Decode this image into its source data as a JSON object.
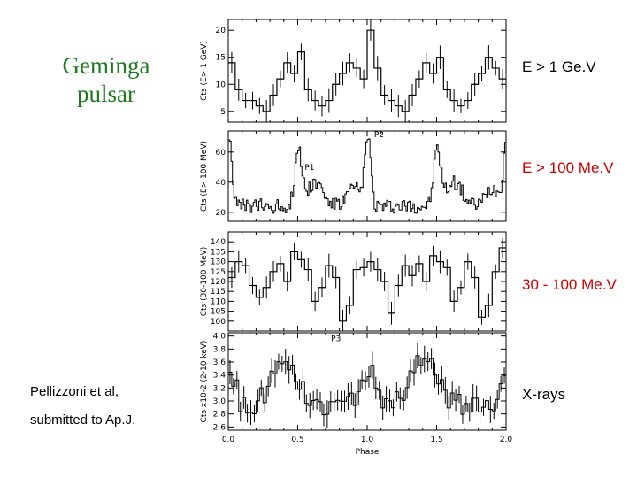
{
  "heading": {
    "line1": "Geminga",
    "line2": "pulsar",
    "color": "#1f7a1f"
  },
  "band_labels": [
    {
      "text": "E > 1 Ge.V",
      "color": "#000000"
    },
    {
      "text": "E > 100 Me.V",
      "color": "#cc0000"
    },
    {
      "text": "30 - 100 Me.V",
      "color": "#cc0000"
    },
    {
      "text": "X-rays",
      "color": "#000000"
    }
  ],
  "credit": {
    "line1": "Pellizzoni et al,",
    "line2": "submitted to Ap.J."
  },
  "chart_data": [
    {
      "type": "line",
      "panel": "E > 1 GeV",
      "ylabel": "Cts (E> 1 GeV)",
      "yticks": [
        5,
        10,
        15,
        20
      ],
      "ylim": [
        3,
        22
      ],
      "x": [
        0.0,
        0.05,
        0.1,
        0.15,
        0.2,
        0.25,
        0.3,
        0.35,
        0.4,
        0.45,
        0.5,
        0.55,
        0.6,
        0.65,
        0.7,
        0.75,
        0.8,
        0.85,
        0.9,
        0.95,
        1.0,
        1.05,
        1.1,
        1.15,
        1.2,
        1.25,
        1.3,
        1.35,
        1.4,
        1.45,
        1.5,
        1.55,
        1.6,
        1.65,
        1.7,
        1.75,
        1.8,
        1.85,
        1.9,
        1.95
      ],
      "values": [
        14,
        9,
        7,
        7,
        6,
        5,
        8,
        11,
        14,
        12,
        16,
        9,
        7,
        6,
        7,
        10,
        12,
        14,
        13,
        11,
        20,
        13,
        8,
        7,
        6,
        5,
        8,
        11,
        14,
        12,
        15,
        9,
        7,
        6,
        7,
        10,
        12,
        15,
        13,
        11
      ]
    },
    {
      "type": "line",
      "panel": "E > 100 MeV",
      "ylabel": "Cts (E> 100 MeV)",
      "yticks": [
        20,
        40,
        60
      ],
      "ylim": [
        14,
        74
      ],
      "annotations": [
        "P1",
        "P2"
      ],
      "x_start": 0.0,
      "x_step": 0.01,
      "n": 200,
      "profile": "double-peaked light curve, P1 near phase 0.5 and 1.5 (~61 cts), P2 near phase 1.0 and 2.0 (~72 cts), off-pulse ~25 cts"
    },
    {
      "type": "line",
      "panel": "30 - 100 MeV",
      "ylabel": "Cts (30-100 MeV)",
      "yticks": [
        100,
        105,
        110,
        115,
        120,
        125,
        130,
        135,
        140
      ],
      "ylim": [
        95,
        145
      ],
      "x": [
        0.0,
        0.05,
        0.1,
        0.15,
        0.2,
        0.25,
        0.3,
        0.35,
        0.4,
        0.45,
        0.5,
        0.55,
        0.6,
        0.65,
        0.7,
        0.75,
        0.8,
        0.85,
        0.9,
        0.95,
        1.0,
        1.05,
        1.1,
        1.15,
        1.2,
        1.25,
        1.3,
        1.35,
        1.4,
        1.45,
        1.5,
        1.55,
        1.6,
        1.65,
        1.7,
        1.75,
        1.8,
        1.85,
        1.9,
        1.95
      ],
      "values": [
        122,
        130,
        128,
        118,
        112,
        117,
        125,
        129,
        120,
        135,
        131,
        126,
        110,
        117,
        128,
        122,
        100,
        108,
        126,
        127,
        130,
        126,
        120,
        104,
        118,
        128,
        123,
        129,
        120,
        133,
        130,
        127,
        110,
        117,
        130,
        122,
        102,
        108,
        125,
        137
      ]
    },
    {
      "type": "line",
      "panel": "X-rays",
      "ylabel": "Cts x10-2 (2-10 keV)",
      "yticks": [
        2.6,
        2.8,
        3.0,
        3.2,
        3.4,
        3.6,
        3.8,
        4.0
      ],
      "ylim": [
        2.55,
        4.05
      ],
      "xlabel": "Phase",
      "xticks": [
        0.0,
        0.5,
        1.0,
        1.5,
        2.0
      ],
      "xlim": [
        0.0,
        2.0
      ],
      "annotations": [
        "P3"
      ],
      "x_start": 0.0,
      "x_step": 0.025,
      "n": 80,
      "profile": "broad peaks near phase 0.4 and 1.4 (~3.7), narrower peak near phase 1.0 (~3.6), minima ~2.9 near phase 0.15 and 1.15"
    }
  ],
  "colors": {
    "axis": "#000000",
    "trace": "#000000"
  }
}
